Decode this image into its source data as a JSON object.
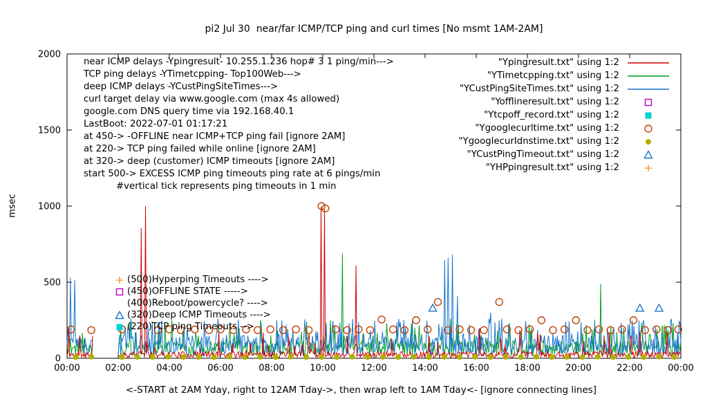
{
  "title": "pi2 Jul 30  near/far ICMP/TCP ping and curl times [No msmt 1AM-2AM]",
  "annotations": {
    "lines": [
      {
        "text": "near ICMP delays -Ypingresult- 10.255.1.236 hop# 3 1 ping/min--->",
        "indent": false
      },
      {
        "text": "TCP ping delays -YTimetcpping- Top100Web--->",
        "indent": false
      },
      {
        "text": "deep ICMP delays -YCustPingSiteTimes--->",
        "indent": false
      },
      {
        "text": "curl target delay via www.google.com (max 4s allowed)",
        "indent": false
      },
      {
        "text": "google.com DNS query time via 192.168.40.1",
        "indent": false
      },
      {
        "text": "LastBoot: 2022-07-01 01:17:21",
        "indent": false
      },
      {
        "text": "at 450-> -OFFLINE near ICMP+TCP ping fail [ignore 2AM]",
        "indent": false
      },
      {
        "text": "at 220-> TCP ping failed while online [ignore 2AM]",
        "indent": false
      },
      {
        "text": "at 320-> deep (customer) ICMP timeouts [ignore 2AM]",
        "indent": false
      },
      {
        "text": "start 500-> EXCESS ICMP ping timeouts ping rate at 6 pings/min",
        "indent": false
      },
      {
        "text": "#vertical tick represents ping timeouts in 1 min",
        "indent": true
      }
    ],
    "thresholds": [
      {
        "marker": "plus",
        "color": "#ffa040",
        "text": "(500)Hyperping Timeouts ---->"
      },
      {
        "marker": "open-square",
        "color": "#bb00bb",
        "text": "(450)OFFLINE STATE ----->"
      },
      {
        "marker": "none",
        "color": "#000000",
        "text": "(400)Reboot/powercycle? ---->"
      },
      {
        "marker": "open-triangle",
        "color": "#1874cd",
        "text": "(320)Deep ICMP Timeouts ---->"
      },
      {
        "marker": "filled-square",
        "color": "#00d1d1",
        "text": "(220)TCP ping Timeouts -->"
      }
    ]
  },
  "legend": [
    {
      "label": "\"Ypingresult.txt\" using 1:2",
      "sample": "line",
      "color": "#d40000"
    },
    {
      "label": "\"YTimetcpping.txt\" using 1:2",
      "sample": "line",
      "color": "#00a020"
    },
    {
      "label": "\"YCustPingSiteTimes.txt\" using 1:2",
      "sample": "line",
      "color": "#1874cd"
    },
    {
      "label": "\"Yofflineresult.txt\" using 1:2",
      "sample": "open-square",
      "color": "#bb00bb"
    },
    {
      "label": "\"Ytcpoff_record.txt\" using 1:2",
      "sample": "filled-square",
      "color": "#00d1d1"
    },
    {
      "label": "\"Ygooglecurltime.txt\" using 1:2",
      "sample": "open-circle",
      "color": "#c04000"
    },
    {
      "label": "\"YgooglecurIdnstime.txt\" using 1:2",
      "sample": "filled-circle",
      "color": "#b0b000"
    },
    {
      "label": "\"YCustPingTimeout.txt\" using 1:2",
      "sample": "open-triangle",
      "color": "#1874cd"
    },
    {
      "label": "\"YHPpingresult.txt\" using 1:2",
      "sample": "plus",
      "color": "#ffa040"
    }
  ],
  "chart_data": {
    "type": "line",
    "title": "pi2 Jul 30  near/far ICMP/TCP ping and curl times [No msmt 1AM-2AM]",
    "ylabel": "msec",
    "xlabel": "<-START at 2AM Yday, right to 12AM Tday->, then wrap left to 1AM Tday<- [ignore connecting lines]",
    "ylim": [
      0,
      2000
    ],
    "yticks": [
      0,
      500,
      1000,
      1500,
      2000
    ],
    "xtick_hours": [
      0,
      2,
      4,
      6,
      8,
      10,
      12,
      14,
      16,
      18,
      20,
      22,
      24
    ],
    "xtick_labels": [
      "00:00",
      "02:00",
      "04:00",
      "06:00",
      "08:00",
      "10:00",
      "12:00",
      "14:00",
      "16:00",
      "18:00",
      "20:00",
      "22:00",
      "00:00"
    ],
    "gap_hours": [
      1,
      2
    ],
    "grid": false,
    "legend_position": "top-right",
    "line_series": [
      {
        "name": "YTimetcpping.txt",
        "color": "#00a020",
        "noise_min": 15,
        "noise_max": 115,
        "burst_prob": 0.1,
        "burst_extra": 120,
        "seed": 22,
        "spikes": [
          [
            2.45,
            240
          ],
          [
            4.1,
            250
          ],
          [
            6.35,
            230
          ],
          [
            7.55,
            250
          ],
          [
            9.35,
            240
          ],
          [
            10.3,
            250
          ],
          [
            10.75,
            690
          ],
          [
            12.5,
            230
          ],
          [
            15.0,
            260
          ],
          [
            17.3,
            230
          ],
          [
            20.85,
            490
          ],
          [
            23.3,
            210
          ]
        ]
      },
      {
        "name": "YCustPingSiteTimes.txt",
        "color": "#1874cd",
        "noise_min": 15,
        "noise_max": 150,
        "burst_prob": 0.12,
        "burst_extra": 110,
        "seed": 33,
        "spikes": [
          [
            0.12,
            530
          ],
          [
            0.3,
            515
          ],
          [
            2.5,
            260
          ],
          [
            3.6,
            240
          ],
          [
            5.9,
            260
          ],
          [
            8.2,
            250
          ],
          [
            9.3,
            255
          ],
          [
            13.5,
            250
          ],
          [
            14.75,
            645
          ],
          [
            14.9,
            660
          ],
          [
            15.05,
            680
          ],
          [
            15.25,
            410
          ],
          [
            16.55,
            300
          ],
          [
            17.0,
            260
          ],
          [
            19.5,
            240
          ],
          [
            22.0,
            230
          ]
        ]
      },
      {
        "name": "Ypingresult.txt",
        "color": "#d40000",
        "noise_min": 3,
        "noise_max": 45,
        "burst_prob": 0.06,
        "burst_extra": 140,
        "seed": 11,
        "spikes": [
          [
            0.07,
            200
          ],
          [
            2.9,
            855
          ],
          [
            3.07,
            1000
          ],
          [
            9.93,
            995
          ],
          [
            10.08,
            980
          ],
          [
            11.3,
            610
          ],
          [
            16.15,
            200
          ],
          [
            21.0,
            150
          ]
        ]
      }
    ],
    "scatter_series": [
      {
        "name": "Ygooglecurltime.txt",
        "marker": "open-circle",
        "color": "#c04000",
        "points": [
          [
            0.15,
            190
          ],
          [
            0.95,
            185
          ],
          [
            2.15,
            190
          ],
          [
            3.55,
            185
          ],
          [
            4.0,
            190
          ],
          [
            4.45,
            185
          ],
          [
            5.0,
            190
          ],
          [
            5.55,
            185
          ],
          [
            6.0,
            190
          ],
          [
            6.5,
            185
          ],
          [
            7.0,
            190
          ],
          [
            7.45,
            185
          ],
          [
            7.95,
            190
          ],
          [
            8.45,
            185
          ],
          [
            8.95,
            190
          ],
          [
            9.45,
            185
          ],
          [
            9.95,
            1000
          ],
          [
            10.1,
            985
          ],
          [
            10.5,
            190
          ],
          [
            10.95,
            185
          ],
          [
            11.4,
            190
          ],
          [
            11.85,
            185
          ],
          [
            12.3,
            255
          ],
          [
            12.75,
            190
          ],
          [
            13.2,
            185
          ],
          [
            13.65,
            250
          ],
          [
            14.1,
            190
          ],
          [
            14.5,
            370
          ],
          [
            14.9,
            185
          ],
          [
            15.35,
            190
          ],
          [
            15.8,
            185
          ],
          [
            16.3,
            185
          ],
          [
            16.9,
            370
          ],
          [
            17.2,
            190
          ],
          [
            17.65,
            185
          ],
          [
            18.1,
            190
          ],
          [
            18.55,
            250
          ],
          [
            19.0,
            185
          ],
          [
            19.45,
            190
          ],
          [
            19.9,
            250
          ],
          [
            20.35,
            185
          ],
          [
            20.8,
            190
          ],
          [
            21.25,
            185
          ],
          [
            21.7,
            190
          ],
          [
            22.15,
            250
          ],
          [
            22.6,
            185
          ],
          [
            23.05,
            190
          ],
          [
            23.5,
            185
          ],
          [
            23.9,
            190
          ]
        ]
      },
      {
        "name": "YgooglecurIdnstime.txt",
        "marker": "filled-circle",
        "color": "#b0b000",
        "points": [
          [
            0.35,
            8
          ],
          [
            0.95,
            10
          ],
          [
            2.15,
            8
          ],
          [
            2.75,
            9
          ],
          [
            3.35,
            8
          ],
          [
            3.95,
            10
          ],
          [
            4.55,
            8
          ],
          [
            5.15,
            9
          ],
          [
            5.75,
            8
          ],
          [
            6.35,
            10
          ],
          [
            6.95,
            8
          ],
          [
            7.55,
            9
          ],
          [
            8.15,
            8
          ],
          [
            8.75,
            10
          ],
          [
            9.35,
            8
          ],
          [
            9.95,
            9
          ],
          [
            10.55,
            8
          ],
          [
            11.15,
            10
          ],
          [
            11.75,
            8
          ],
          [
            12.35,
            9
          ],
          [
            12.95,
            8
          ],
          [
            13.55,
            10
          ],
          [
            14.15,
            8
          ],
          [
            14.75,
            9
          ],
          [
            15.35,
            8
          ],
          [
            15.95,
            10
          ],
          [
            16.55,
            8
          ],
          [
            17.15,
            9
          ],
          [
            17.75,
            8
          ],
          [
            18.35,
            10
          ],
          [
            18.95,
            8
          ],
          [
            19.55,
            9
          ],
          [
            20.15,
            8
          ],
          [
            20.75,
            10
          ],
          [
            21.35,
            8
          ],
          [
            21.95,
            9
          ],
          [
            22.55,
            8
          ],
          [
            23.15,
            10
          ],
          [
            23.75,
            8
          ]
        ]
      },
      {
        "name": "YCustPingTimeout.txt",
        "marker": "open-triangle",
        "color": "#1874cd",
        "points": [
          [
            14.3,
            330
          ],
          [
            22.4,
            330
          ],
          [
            23.15,
            330
          ]
        ]
      },
      {
        "name": "Yofflineresult.txt",
        "marker": "open-square",
        "color": "#bb00bb",
        "points": []
      },
      {
        "name": "Ytcpoff_record.txt",
        "marker": "filled-square",
        "color": "#00d1d1",
        "points": []
      },
      {
        "name": "YHPpingresult.txt",
        "marker": "plus",
        "color": "#ffa040",
        "points": []
      }
    ]
  }
}
